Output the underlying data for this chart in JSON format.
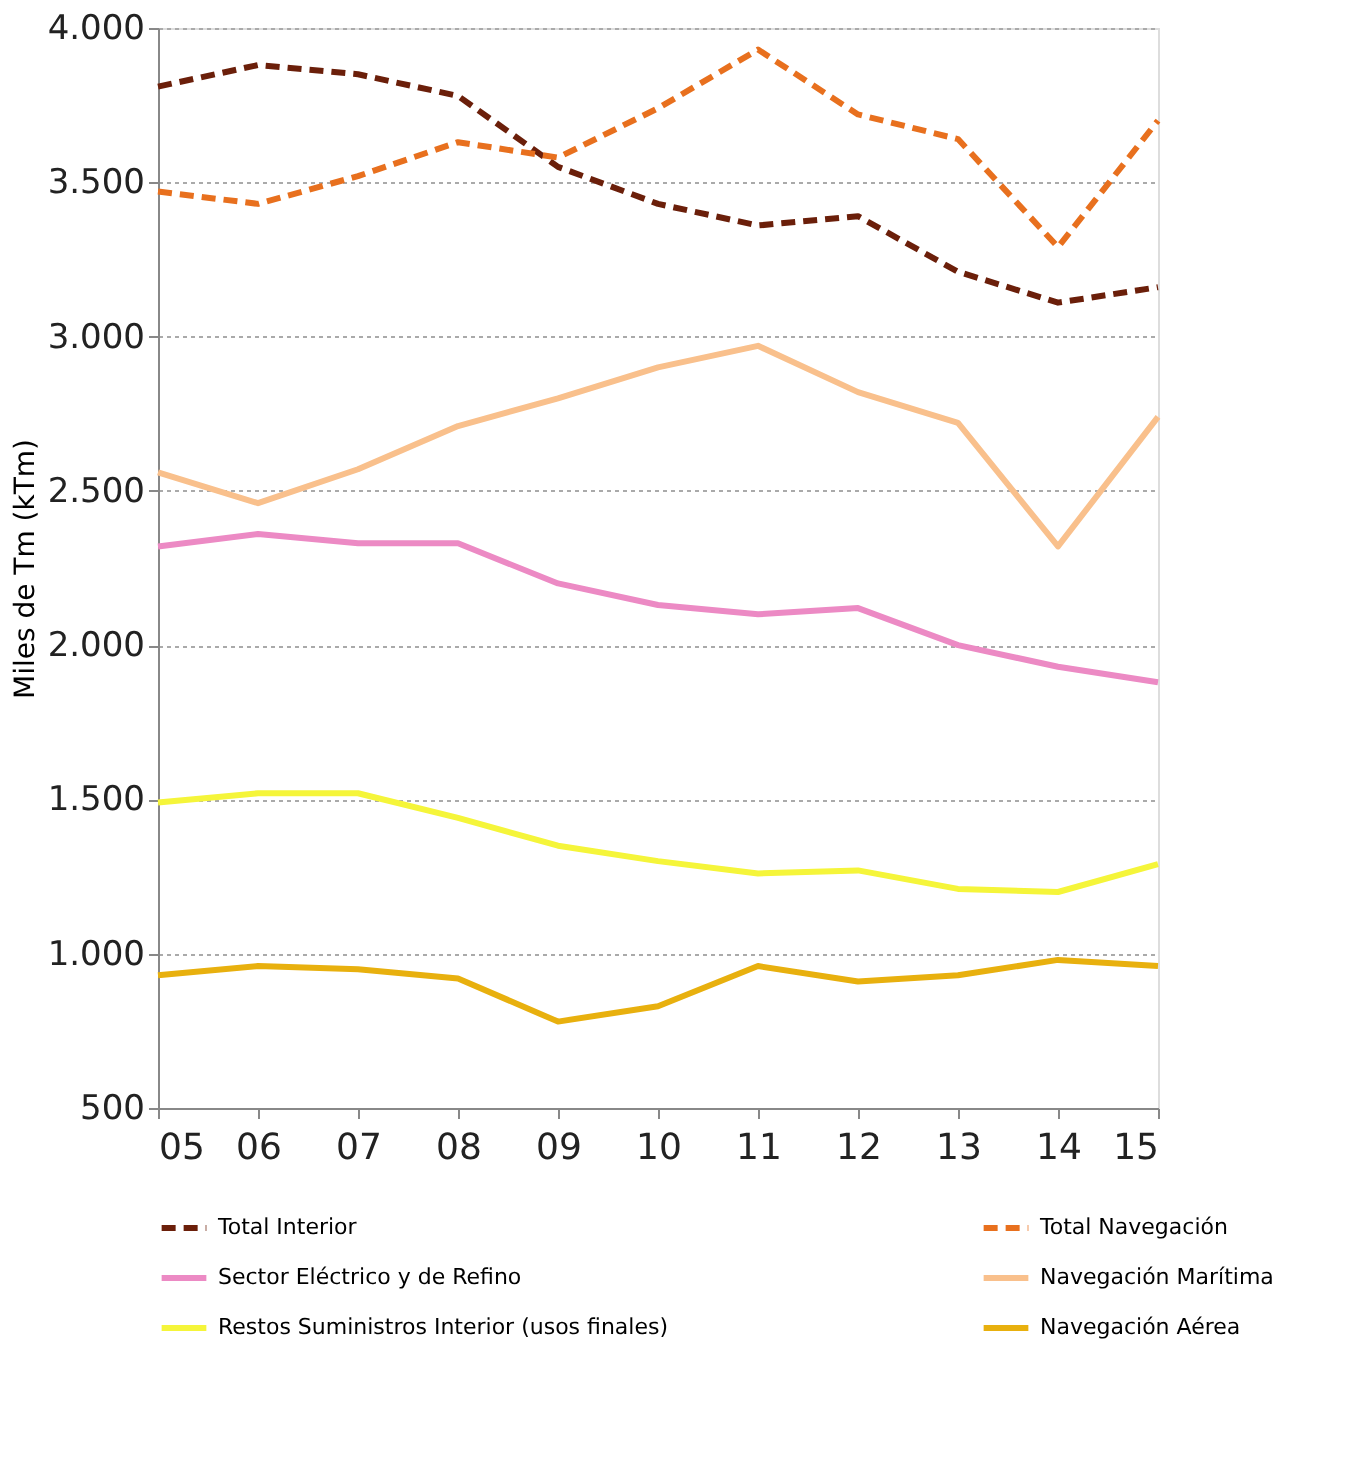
{
  "chart_data": {
    "type": "line",
    "ylabel": "Miles de Tm (kTm)",
    "categories": [
      "05",
      "06",
      "07",
      "08",
      "09",
      "10",
      "11",
      "12",
      "13",
      "14",
      "15"
    ],
    "ylim": [
      500,
      4000
    ],
    "yticks": [
      {
        "value": 500,
        "label": "500"
      },
      {
        "value": 1000,
        "label": "1.000"
      },
      {
        "value": 1500,
        "label": "1.500"
      },
      {
        "value": 2000,
        "label": "2.000"
      },
      {
        "value": 2500,
        "label": "2.500"
      },
      {
        "value": 3000,
        "label": "3.000"
      },
      {
        "value": 3500,
        "label": "3.500"
      },
      {
        "value": 4000,
        "label": "4.000"
      }
    ],
    "grid": "y",
    "legend": "bottom",
    "series": [
      {
        "name": "Total Interior",
        "color": "#6b1f0a",
        "line_style": "dashed",
        "values": [
          3810,
          3880,
          3850,
          3780,
          3550,
          3430,
          3360,
          3390,
          3210,
          3110,
          3160
        ]
      },
      {
        "name": "Total Navegación",
        "color": "#e8701e",
        "line_style": "dashed",
        "values": [
          3470,
          3430,
          3520,
          3630,
          3580,
          3740,
          3930,
          3720,
          3640,
          3290,
          3700
        ]
      },
      {
        "name": "Sector Eléctrico y de Refino",
        "color": "#ec8ac4",
        "line_style": "solid",
        "values": [
          2320,
          2360,
          2330,
          2330,
          2200,
          2130,
          2100,
          2120,
          2000,
          1930,
          1880
        ]
      },
      {
        "name": "Navegación Marítima",
        "color": "#f9c08c",
        "line_style": "solid",
        "values": [
          2560,
          2460,
          2570,
          2710,
          2800,
          2900,
          2970,
          2820,
          2720,
          2320,
          2740
        ]
      },
      {
        "name": "Restos Suministros Interior (usos finales)",
        "color": "#f5f53a",
        "line_style": "solid",
        "values": [
          1490,
          1520,
          1520,
          1440,
          1350,
          1300,
          1260,
          1270,
          1210,
          1200,
          1290
        ]
      },
      {
        "name": "Navegación Aérea",
        "color": "#e8b00e",
        "line_style": "solid",
        "values": [
          930,
          960,
          950,
          920,
          780,
          830,
          960,
          910,
          930,
          980,
          960
        ]
      }
    ]
  }
}
